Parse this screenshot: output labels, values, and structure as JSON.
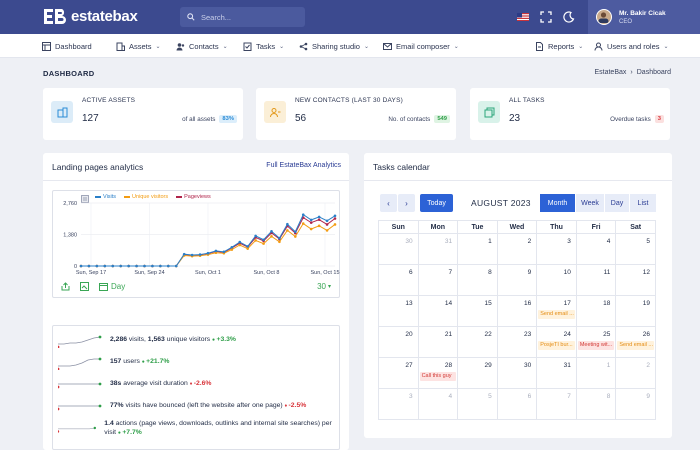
{
  "header": {
    "brand": "estatebax",
    "search_placeholder": "Search...",
    "user_name": "Mr. Bakir Cicak",
    "user_role": "CEO"
  },
  "menu": [
    {
      "label": "Dashboard",
      "icon": "dashboard-icon"
    },
    {
      "label": "Assets",
      "icon": "building-icon"
    },
    {
      "label": "Contacts",
      "icon": "contacts-icon"
    },
    {
      "label": "Tasks",
      "icon": "tasks-icon"
    },
    {
      "label": "Sharing studio",
      "icon": "share-icon"
    },
    {
      "label": "Email composer",
      "icon": "mail-icon"
    },
    {
      "label": "Reports",
      "icon": "report-icon"
    },
    {
      "label": "Users and roles",
      "icon": "user-icon"
    }
  ],
  "page": {
    "title": "DASHBOARD",
    "breadcrumb": [
      "EstateBax",
      "›",
      "Dashboard"
    ]
  },
  "stats": [
    {
      "label": "ACTIVE ASSETS",
      "value": "127",
      "sub": "of all assets",
      "badge": "83%",
      "badge_color": "#2a8bd6",
      "badge_bg": "#dceefb",
      "icon": "building-icon",
      "icon_bg": "#dcecf8",
      "icon_color": "#2a8bd6"
    },
    {
      "label": "NEW CONTACTS (LAST 30 DAYS)",
      "value": "56",
      "sub": "No. of contacts",
      "badge": "549",
      "badge_color": "#2e9e48",
      "badge_bg": "#dff4e3",
      "icon": "contacts-icon",
      "icon_bg": "#fbefd7",
      "icon_color": "#e39a1d"
    },
    {
      "label": "ALL TASKS",
      "value": "23",
      "sub": "Overdue tasks",
      "badge": "3",
      "badge_color": "#d8343a",
      "badge_bg": "#fbe0df",
      "icon": "tasks-icon",
      "icon_bg": "#d9f2ea",
      "icon_color": "#2aa57a"
    }
  ],
  "analytics": {
    "title": "Landing pages analytics",
    "link": "Full EstateBax Analytics",
    "footer_period": "Day",
    "footer_range": "30",
    "rows": [
      {
        "strong1": "2,286",
        "text1": " visits, ",
        "strong2": "1,563",
        "text2": " unique visitors ",
        "trend": "+3.3%",
        "dir": "pos"
      },
      {
        "strong1": "157",
        "text1": " users ",
        "strong2": "",
        "text2": "",
        "trend": "+21.7%",
        "dir": "pos"
      },
      {
        "strong1": "38s",
        "text1": " average visit duration ",
        "strong2": "",
        "text2": "",
        "trend": "-2.6%",
        "dir": "neg"
      },
      {
        "strong1": "77%",
        "text1": " visits have bounced (left the website after one page) ",
        "strong2": "",
        "text2": "",
        "trend": "-2.5%",
        "dir": "neg"
      },
      {
        "strong1": "1.4",
        "text1": " actions (page views, downloads, outlinks and internal site searches) per visit ",
        "strong2": "",
        "text2": "",
        "trend": "+7.7%",
        "dir": "pos"
      }
    ]
  },
  "chart_data": {
    "type": "line",
    "x_ticks": [
      "Sun, Sep 17",
      "Sun, Sep 24",
      "Sun, Oct 1",
      "Sun, Oct 8",
      "Sun, Oct 15"
    ],
    "y_ticks": [
      "2,760",
      "1,380",
      "0"
    ],
    "ylim": [
      0,
      2760
    ],
    "legend_position": "top-left",
    "series": [
      {
        "name": "Visits",
        "color": "#2a7fc8",
        "values": [
          0,
          0,
          0,
          0,
          0,
          0,
          0,
          0,
          0,
          0,
          0,
          0,
          0,
          520,
          480,
          500,
          560,
          660,
          620,
          820,
          1050,
          860,
          1320,
          1150,
          1520,
          1220,
          1830,
          1500,
          2250,
          2020,
          2150,
          1980,
          2200
        ]
      },
      {
        "name": "Unique visitors",
        "color": "#f39c12",
        "values": [
          0,
          0,
          0,
          0,
          0,
          0,
          0,
          0,
          0,
          0,
          0,
          0,
          0,
          460,
          430,
          450,
          500,
          580,
          560,
          720,
          920,
          760,
          1120,
          980,
          1300,
          1060,
          1560,
          1290,
          1860,
          1620,
          1760,
          1560,
          1820
        ]
      },
      {
        "name": "Pageviews",
        "color": "#b0244a",
        "values": [
          0,
          0,
          0,
          0,
          0,
          0,
          0,
          0,
          0,
          0,
          0,
          0,
          0,
          500,
          470,
          490,
          540,
          640,
          600,
          790,
          1000,
          830,
          1250,
          1100,
          1450,
          1180,
          1750,
          1440,
          2120,
          1900,
          2030,
          1820,
          2080
        ]
      }
    ]
  },
  "calendar": {
    "title": "Tasks calendar",
    "month_label": "AUGUST 2023",
    "today_label": "Today",
    "views": [
      "Month",
      "Week",
      "Day",
      "List"
    ],
    "active_view": "Month",
    "weekdays": [
      "Sun",
      "Mon",
      "Tue",
      "Wed",
      "Thu",
      "Fri",
      "Sat"
    ],
    "weeks": [
      [
        {
          "d": "30",
          "out": true
        },
        {
          "d": "31",
          "out": true
        },
        {
          "d": "1"
        },
        {
          "d": "2"
        },
        {
          "d": "3"
        },
        {
          "d": "4"
        },
        {
          "d": "5"
        }
      ],
      [
        {
          "d": "6"
        },
        {
          "d": "7"
        },
        {
          "d": "8"
        },
        {
          "d": "9"
        },
        {
          "d": "10"
        },
        {
          "d": "11"
        },
        {
          "d": "12"
        }
      ],
      [
        {
          "d": "13"
        },
        {
          "d": "14"
        },
        {
          "d": "15"
        },
        {
          "d": "16"
        },
        {
          "d": "17",
          "evt": "Send email ...",
          "evt_color": "orange"
        },
        {
          "d": "18"
        },
        {
          "d": "19"
        }
      ],
      [
        {
          "d": "20"
        },
        {
          "d": "21"
        },
        {
          "d": "22"
        },
        {
          "d": "23"
        },
        {
          "d": "24",
          "evt": "PosjeTI bur...",
          "evt_color": "orange"
        },
        {
          "d": "25",
          "evt": "Meeting wit...",
          "evt_color": "red"
        },
        {
          "d": "26",
          "evt": "Send email ...",
          "evt_color": "orange"
        }
      ],
      [
        {
          "d": "27"
        },
        {
          "d": "28",
          "evt": "Call this guy",
          "evt_color": "red"
        },
        {
          "d": "29"
        },
        {
          "d": "30"
        },
        {
          "d": "31"
        },
        {
          "d": "1",
          "out": true
        },
        {
          "d": "2",
          "out": true
        }
      ],
      [
        {
          "d": "3",
          "out": true
        },
        {
          "d": "4",
          "out": true
        },
        {
          "d": "5",
          "out": true
        },
        {
          "d": "6",
          "out": true
        },
        {
          "d": "7",
          "out": true
        },
        {
          "d": "8",
          "out": true
        },
        {
          "d": "9",
          "out": true
        }
      ]
    ]
  }
}
